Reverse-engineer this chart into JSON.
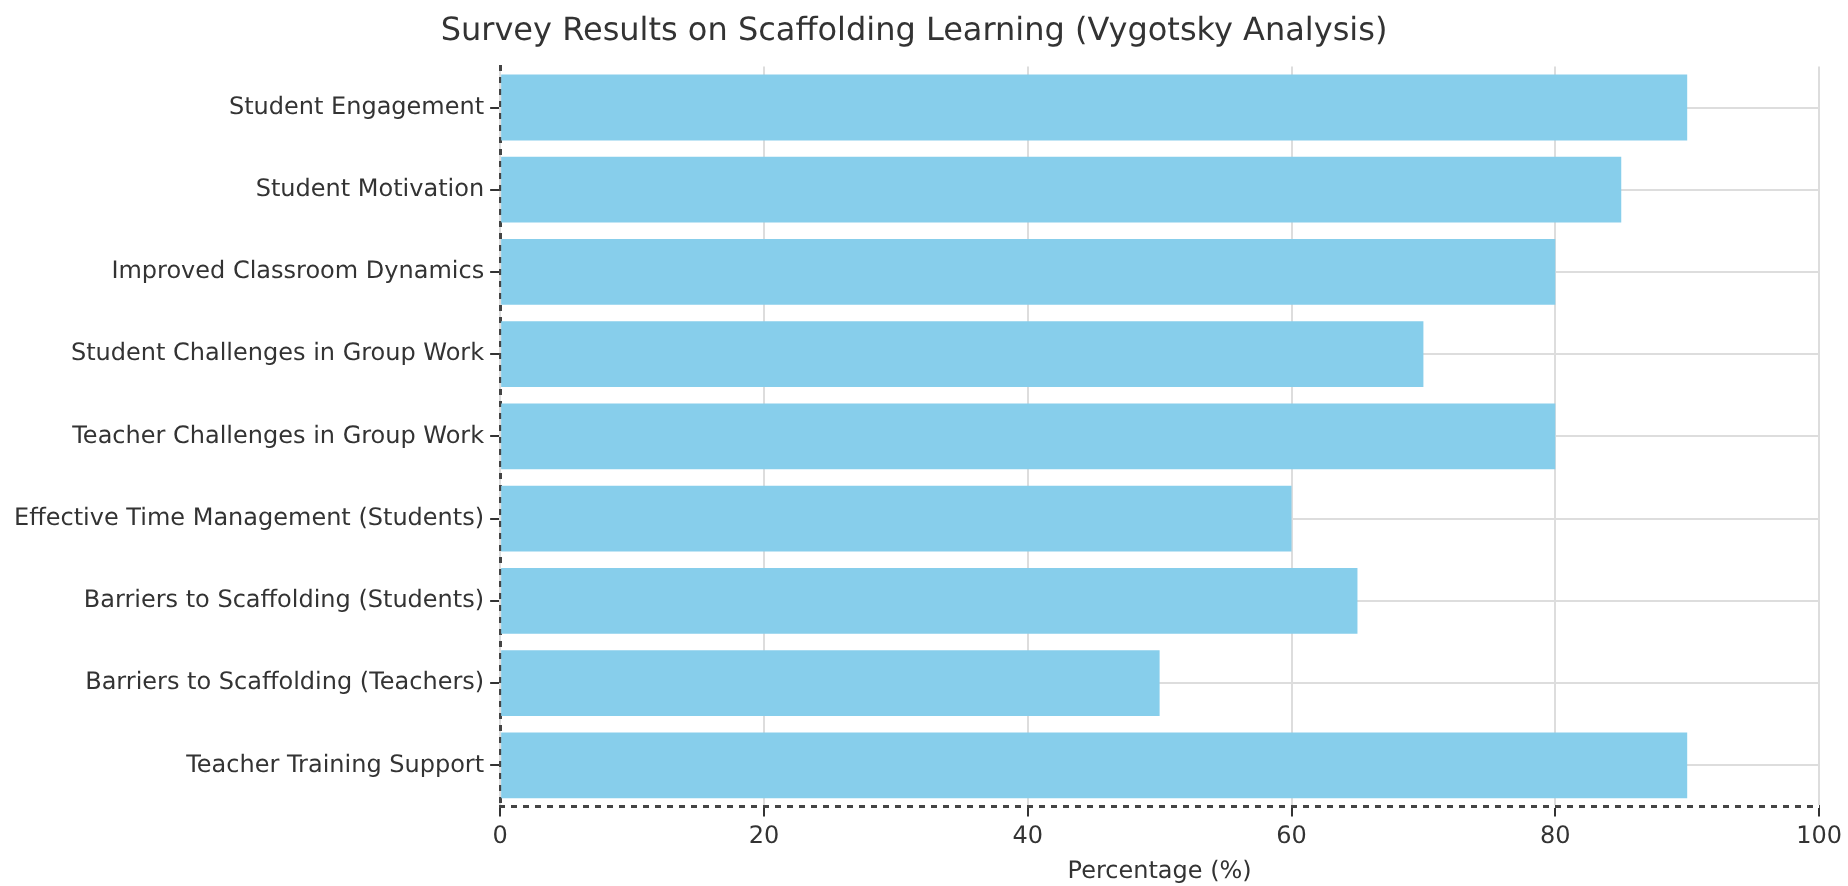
{
  "chart_data": {
    "type": "bar",
    "orientation": "horizontal",
    "title": "Survey Results on Scaffolding Learning (Vygotsky Analysis)",
    "xlabel": "Percentage (%)",
    "categories": [
      "Student Engagement",
      "Student Motivation",
      "Improved Classroom Dynamics",
      "Student Challenges in Group Work",
      "Teacher Challenges in Group Work",
      "Effective Time Management (Students)",
      "Barriers to Scaffolding (Students)",
      "Barriers to Scaffolding (Teachers)",
      "Teacher Training Support"
    ],
    "values": [
      90,
      85,
      80,
      70,
      80,
      60,
      65,
      50,
      90
    ],
    "color": "#87ceeb",
    "xlim": [
      0,
      100
    ],
    "xticks": [
      0,
      20,
      40,
      60,
      80,
      100
    ],
    "grid": true,
    "legend": false
  }
}
